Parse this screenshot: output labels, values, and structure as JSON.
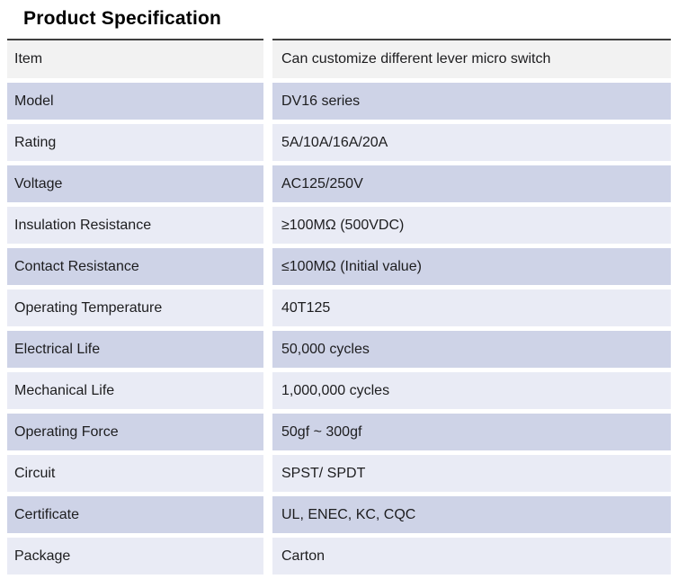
{
  "page": {
    "title": "Product Specification"
  },
  "colors": {
    "row_first_bg": "#f2f2f2",
    "row_lavender_bg": "#ced3e7",
    "row_light_bg": "#e9ebf5",
    "table_top_border": "#3f3f3f",
    "text": "#1d1d1f",
    "page_bg": "#ffffff"
  },
  "table": {
    "rows": [
      {
        "label": "Item",
        "value": "Can customize different lever micro switch"
      },
      {
        "label": "Model",
        "value": "DV16 series"
      },
      {
        "label": "Rating",
        "value": "5A/10A/16A/20A"
      },
      {
        "label": "Voltage",
        "value": "AC125/250V"
      },
      {
        "label": "Insulation Resistance",
        "value": "≥100MΩ (500VDC)"
      },
      {
        "label": "Contact Resistance",
        "value": "≤100MΩ (Initial value)"
      },
      {
        "label": "Operating Temperature",
        "value": "40T125"
      },
      {
        "label": "Electrical Life",
        "value": "50,000 cycles"
      },
      {
        "label": "Mechanical Life",
        "value": "1,000,000 cycles"
      },
      {
        "label": "Operating Force",
        "value": "50gf ~ 300gf"
      },
      {
        "label": "Circuit",
        "value": "SPST/ SPDT"
      },
      {
        "label": "Certificate",
        "value": "UL, ENEC, KC, CQC"
      },
      {
        "label": "Package",
        "value": "Carton"
      }
    ]
  }
}
